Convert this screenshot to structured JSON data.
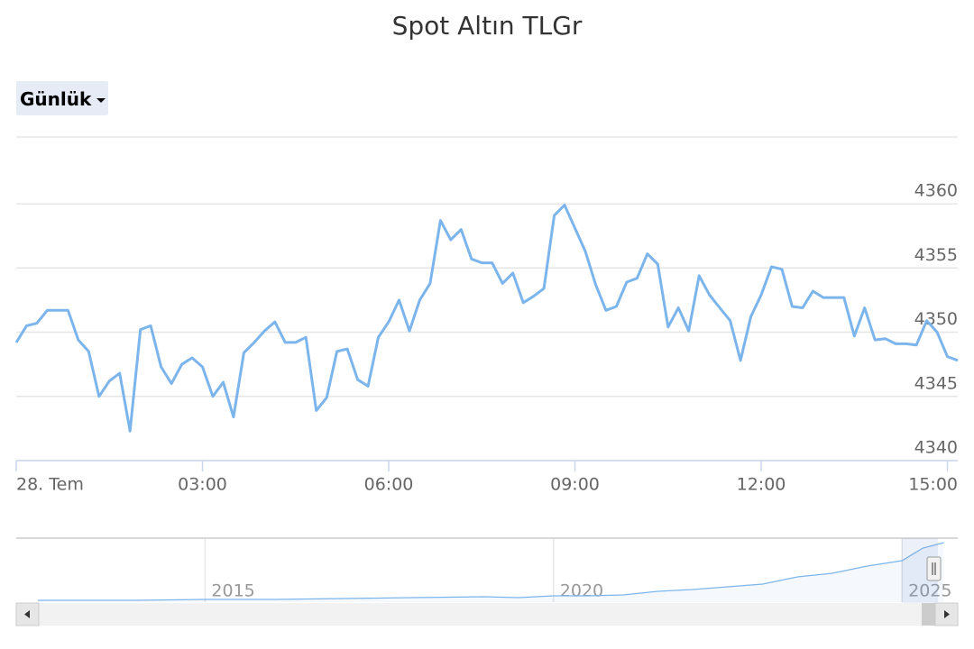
{
  "range_selector": "Günlük",
  "chart_data": [
    {
      "type": "line",
      "title": "Spot Altın TLGr",
      "x": [
        0,
        10,
        20,
        30,
        40,
        50,
        60,
        70,
        80,
        90,
        100,
        110,
        120,
        130,
        140,
        150,
        160,
        170,
        180,
        190,
        200,
        210,
        220,
        230,
        240,
        250,
        260,
        270,
        280,
        290,
        300,
        310,
        320,
        330,
        340,
        350,
        360,
        370,
        380,
        390,
        400,
        410,
        420,
        430,
        440,
        450,
        460,
        470,
        480,
        490,
        500,
        510,
        520,
        530,
        540,
        550,
        560,
        570,
        580,
        590,
        600,
        610,
        620,
        630,
        640,
        650,
        660,
        670,
        680,
        690,
        700,
        710,
        720,
        730,
        740,
        750,
        760,
        770,
        780,
        790,
        800,
        810,
        820,
        830,
        840,
        850,
        860,
        870,
        880,
        890,
        900,
        910
      ],
      "series": [
        {
          "name": "Spot Altın TLGr",
          "color": "#7cb5ec",
          "values": [
            4349.2,
            4350.5,
            4350.7,
            4351.7,
            4351.7,
            4351.7,
            4349.4,
            4348.5,
            4345.0,
            4346.2,
            4346.8,
            4342.3,
            4350.2,
            4350.5,
            4347.3,
            4346.0,
            4347.5,
            4348.0,
            4347.3,
            4345.0,
            4346.1,
            4343.4,
            4348.4,
            4349.2,
            4350.1,
            4350.8,
            4349.2,
            4349.2,
            4349.6,
            4343.9,
            4344.9,
            4348.5,
            4348.7,
            4346.3,
            4345.8,
            4349.6,
            4350.8,
            4352.5,
            4350.1,
            4352.5,
            4353.8,
            4358.7,
            4357.2,
            4358.0,
            4355.7,
            4355.4,
            4355.4,
            4353.8,
            4354.6,
            4352.3,
            4352.8,
            4353.4,
            4359.1,
            4359.9,
            4358.1,
            4356.3,
            4353.7,
            4351.7,
            4352.0,
            4353.9,
            4354.2,
            4356.1,
            4355.3,
            4350.4,
            4351.9,
            4350.1,
            4354.4,
            4352.9,
            4351.9,
            4350.9,
            4347.8,
            4351.2,
            4352.9,
            4355.1,
            4354.9,
            4352.0,
            4351.9,
            4353.2,
            4352.7,
            4352.7,
            4352.7,
            4349.7,
            4351.9,
            4349.4,
            4349.5,
            4349.1,
            4349.1,
            4349.0,
            4350.9,
            4350.0,
            4348.1,
            4347.8
          ]
        }
      ],
      "xlim": [
        0,
        910
      ],
      "xticks": [
        {
          "value": 0,
          "label": "28. Tem"
        },
        {
          "value": 180,
          "label": "03:00"
        },
        {
          "value": 360,
          "label": "06:00"
        },
        {
          "value": 540,
          "label": "09:00"
        },
        {
          "value": 720,
          "label": "12:00"
        },
        {
          "value": 900,
          "label": "15:00"
        }
      ],
      "ylim": [
        4340,
        4365.2
      ],
      "yticks": [
        4340,
        4345,
        4350,
        4355,
        4360
      ],
      "grid": true
    },
    {
      "type": "area",
      "x": [
        2012.6,
        2014,
        2015,
        2016,
        2017,
        2018,
        2019,
        2019.5,
        2020,
        2020.5,
        2021,
        2021.5,
        2022,
        2022.5,
        2023,
        2023.5,
        2024,
        2024.5,
        2025,
        2025.3,
        2025.6
      ],
      "series": [
        {
          "color": "#7cb5ec",
          "values": [
            126,
            126,
            189,
            189,
            251,
            314,
            377,
            314,
            440,
            440,
            503,
            754,
            880,
            1069,
            1257,
            1760,
            2011,
            2514,
            2891,
            3771,
            4149
          ]
        }
      ],
      "xlim": [
        2012.29,
        2025.8
      ],
      "xticks": [
        2015,
        2020,
        2025
      ],
      "ylim": [
        0,
        4400
      ],
      "grid": true
    }
  ]
}
